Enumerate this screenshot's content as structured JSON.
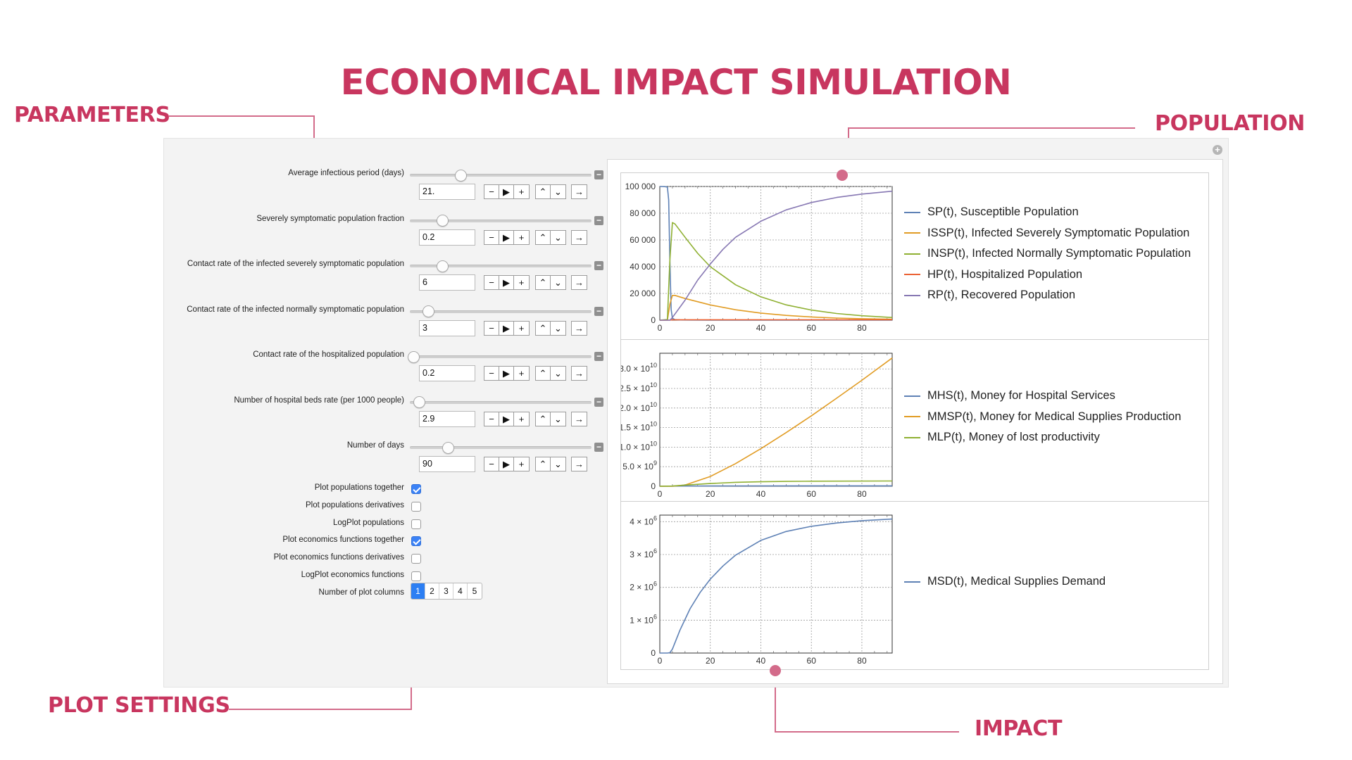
{
  "title": "ECONOMICAL IMPACT SIMULATION",
  "callouts": {
    "parameters": "PARAMETERS",
    "population": "POPULATION",
    "plot_settings": "PLOT SETTINGS",
    "impact": "IMPACT"
  },
  "parameters": [
    {
      "label": "Average infectious period (days)",
      "value": "21.",
      "level": 0.28
    },
    {
      "label": "Severely symptomatic population fraction",
      "value": "0.2",
      "level": 0.18
    },
    {
      "label": "Contact rate of the infected severely symptomatic population",
      "value": "6",
      "level": 0.18
    },
    {
      "label": "Contact rate of the infected normally symptomatic population",
      "value": "3",
      "level": 0.1
    },
    {
      "label": "Contact rate of the hospitalized population",
      "value": "0.2",
      "level": 0.02
    },
    {
      "label": "Number of hospital beds rate (per 1000 people)",
      "value": "2.9",
      "level": 0.05
    },
    {
      "label": "Number of days",
      "value": "90",
      "level": 0.21
    }
  ],
  "controls": {
    "minus": "−",
    "play": "▶",
    "plus": "+",
    "faster": "⌃",
    "slower": "⌄",
    "step": "→"
  },
  "checkboxes": [
    {
      "label": "Plot populations together",
      "checked": true
    },
    {
      "label": "Plot populations derivatives",
      "checked": false
    },
    {
      "label": "LogPlot populations",
      "checked": false
    },
    {
      "label": "Plot economics functions together",
      "checked": true
    },
    {
      "label": "Plot economics functions derivatives",
      "checked": false
    },
    {
      "label": "LogPlot economics functions",
      "checked": false
    }
  ],
  "plot_columns": {
    "label": "Number of plot columns",
    "options": [
      "1",
      "2",
      "3",
      "4",
      "5"
    ],
    "selected": "1"
  },
  "colors": {
    "accent": "#c8365f",
    "blue": "#5e81b5",
    "orange": "#e19c24",
    "green": "#8fb032",
    "red": "#eb6235",
    "purple": "#8778b3"
  },
  "chart_data": [
    {
      "type": "line",
      "x_ticks": [
        "0",
        "20",
        "40",
        "60",
        "80"
      ],
      "y_ticks": [
        "0",
        "20 000",
        "40 000",
        "60 000",
        "80 000",
        "100 000"
      ],
      "xlim": [
        0,
        92
      ],
      "ylim": [
        0,
        100000
      ],
      "legend_position": "right",
      "series": [
        {
          "name": "SP(t), Susceptible Population",
          "color": "#5e81b5",
          "points": [
            [
              0,
              99990
            ],
            [
              2,
              99900
            ],
            [
              3,
              99500
            ],
            [
              3.5,
              90000
            ],
            [
              4,
              45000
            ],
            [
              4.5,
              8000
            ],
            [
              5,
              1500
            ],
            [
              6,
              400
            ],
            [
              8,
              150
            ],
            [
              12,
              80
            ],
            [
              20,
              60
            ],
            [
              40,
              50
            ],
            [
              92,
              50
            ]
          ]
        },
        {
          "name": "ISSP(t), Infected Severely Symptomatic Population",
          "color": "#e19c24",
          "points": [
            [
              0,
              0
            ],
            [
              3,
              100
            ],
            [
              4,
              12000
            ],
            [
              5,
              18500
            ],
            [
              6,
              18500
            ],
            [
              10,
              16200
            ],
            [
              20,
              11400
            ],
            [
              30,
              7800
            ],
            [
              40,
              5300
            ],
            [
              50,
              3600
            ],
            [
              60,
              2400
            ],
            [
              70,
              1600
            ],
            [
              80,
              1100
            ],
            [
              92,
              700
            ]
          ]
        },
        {
          "name": "INSP(t), Infected Normally Symptomatic Population",
          "color": "#8fb032",
          "points": [
            [
              0,
              0
            ],
            [
              3,
              500
            ],
            [
              4,
              45000
            ],
            [
              5,
              73000
            ],
            [
              6,
              72000
            ],
            [
              10,
              62000
            ],
            [
              15,
              50000
            ],
            [
              20,
              40000
            ],
            [
              30,
              26500
            ],
            [
              40,
              17500
            ],
            [
              50,
              11500
            ],
            [
              60,
              7600
            ],
            [
              70,
              5000
            ],
            [
              80,
              3300
            ],
            [
              92,
              2000
            ]
          ]
        },
        {
          "name": "HP(t), Hospitalized Population",
          "color": "#eb6235",
          "points": [
            [
              0,
              0
            ],
            [
              4,
              0
            ],
            [
              5,
              290
            ],
            [
              10,
              290
            ],
            [
              30,
              290
            ],
            [
              60,
              290
            ],
            [
              92,
              290
            ]
          ]
        },
        {
          "name": "RP(t), Recovered Population",
          "color": "#8778b3",
          "points": [
            [
              0,
              0
            ],
            [
              4,
              0
            ],
            [
              5,
              2000
            ],
            [
              10,
              15000
            ],
            [
              15,
              30000
            ],
            [
              20,
              42000
            ],
            [
              25,
              53000
            ],
            [
              30,
              62000
            ],
            [
              40,
              74000
            ],
            [
              50,
              82500
            ],
            [
              60,
              88000
            ],
            [
              70,
              91800
            ],
            [
              80,
              94300
            ],
            [
              92,
              96500
            ]
          ]
        }
      ]
    },
    {
      "type": "line",
      "x_ticks": [
        "0",
        "20",
        "40",
        "60",
        "80"
      ],
      "y_tick_values": [
        "0",
        "5.0 × 10",
        "1.0 × 10",
        "1.5 × 10",
        "2.0 × 10",
        "2.5 × 10",
        "3.0 × 10"
      ],
      "y_tick_exponents": [
        "",
        "9",
        "10",
        "10",
        "10",
        "10",
        "10"
      ],
      "xlim": [
        0,
        92
      ],
      "ylim": [
        0,
        34000000000
      ],
      "legend_position": "right",
      "series": [
        {
          "name": "MHS(t), Money for Hospital Services",
          "color": "#5e81b5",
          "points": [
            [
              0,
              0
            ],
            [
              10,
              60000000
            ],
            [
              30,
              90000000
            ],
            [
              60,
              100000000
            ],
            [
              92,
              110000000
            ]
          ]
        },
        {
          "name": "MMSP(t), Money for Medical Supplies Production",
          "color": "#e19c24",
          "points": [
            [
              0,
              0
            ],
            [
              5,
              20000000
            ],
            [
              10,
              300000000
            ],
            [
              20,
              2500000000
            ],
            [
              30,
              5800000000
            ],
            [
              40,
              9600000000
            ],
            [
              50,
              13700000000
            ],
            [
              60,
              18000000000
            ],
            [
              70,
              22500000000
            ],
            [
              80,
              27100000000
            ],
            [
              92,
              32800000000
            ]
          ]
        },
        {
          "name": "MLP(t), Money of lost productivity",
          "color": "#8fb032",
          "points": [
            [
              0,
              0
            ],
            [
              5,
              50000000
            ],
            [
              10,
              300000000
            ],
            [
              20,
              700000000
            ],
            [
              30,
              1000000000
            ],
            [
              40,
              1150000000
            ],
            [
              50,
              1250000000
            ],
            [
              60,
              1300000000
            ],
            [
              92,
              1350000000
            ]
          ]
        }
      ]
    },
    {
      "type": "line",
      "x_ticks": [
        "0",
        "20",
        "40",
        "60",
        "80"
      ],
      "y_tick_values": [
        "0",
        "1 × 10",
        "2 × 10",
        "3 × 10",
        "4 × 10"
      ],
      "y_tick_exponents": [
        "",
        "6",
        "6",
        "6",
        "6"
      ],
      "xlim": [
        0,
        92
      ],
      "ylim": [
        0,
        4200000
      ],
      "legend_position": "right",
      "series": [
        {
          "name": "MSD(t), Medical Supplies Demand",
          "color": "#5e81b5",
          "points": [
            [
              0,
              0
            ],
            [
              3,
              0
            ],
            [
              4,
              10000
            ],
            [
              5,
              120000
            ],
            [
              8,
              700000
            ],
            [
              12,
              1350000
            ],
            [
              16,
              1850000
            ],
            [
              20,
              2250000
            ],
            [
              25,
              2650000
            ],
            [
              30,
              2980000
            ],
            [
              40,
              3430000
            ],
            [
              50,
              3700000
            ],
            [
              60,
              3860000
            ],
            [
              70,
              3960000
            ],
            [
              80,
              4030000
            ],
            [
              92,
              4080000
            ]
          ]
        }
      ]
    }
  ]
}
